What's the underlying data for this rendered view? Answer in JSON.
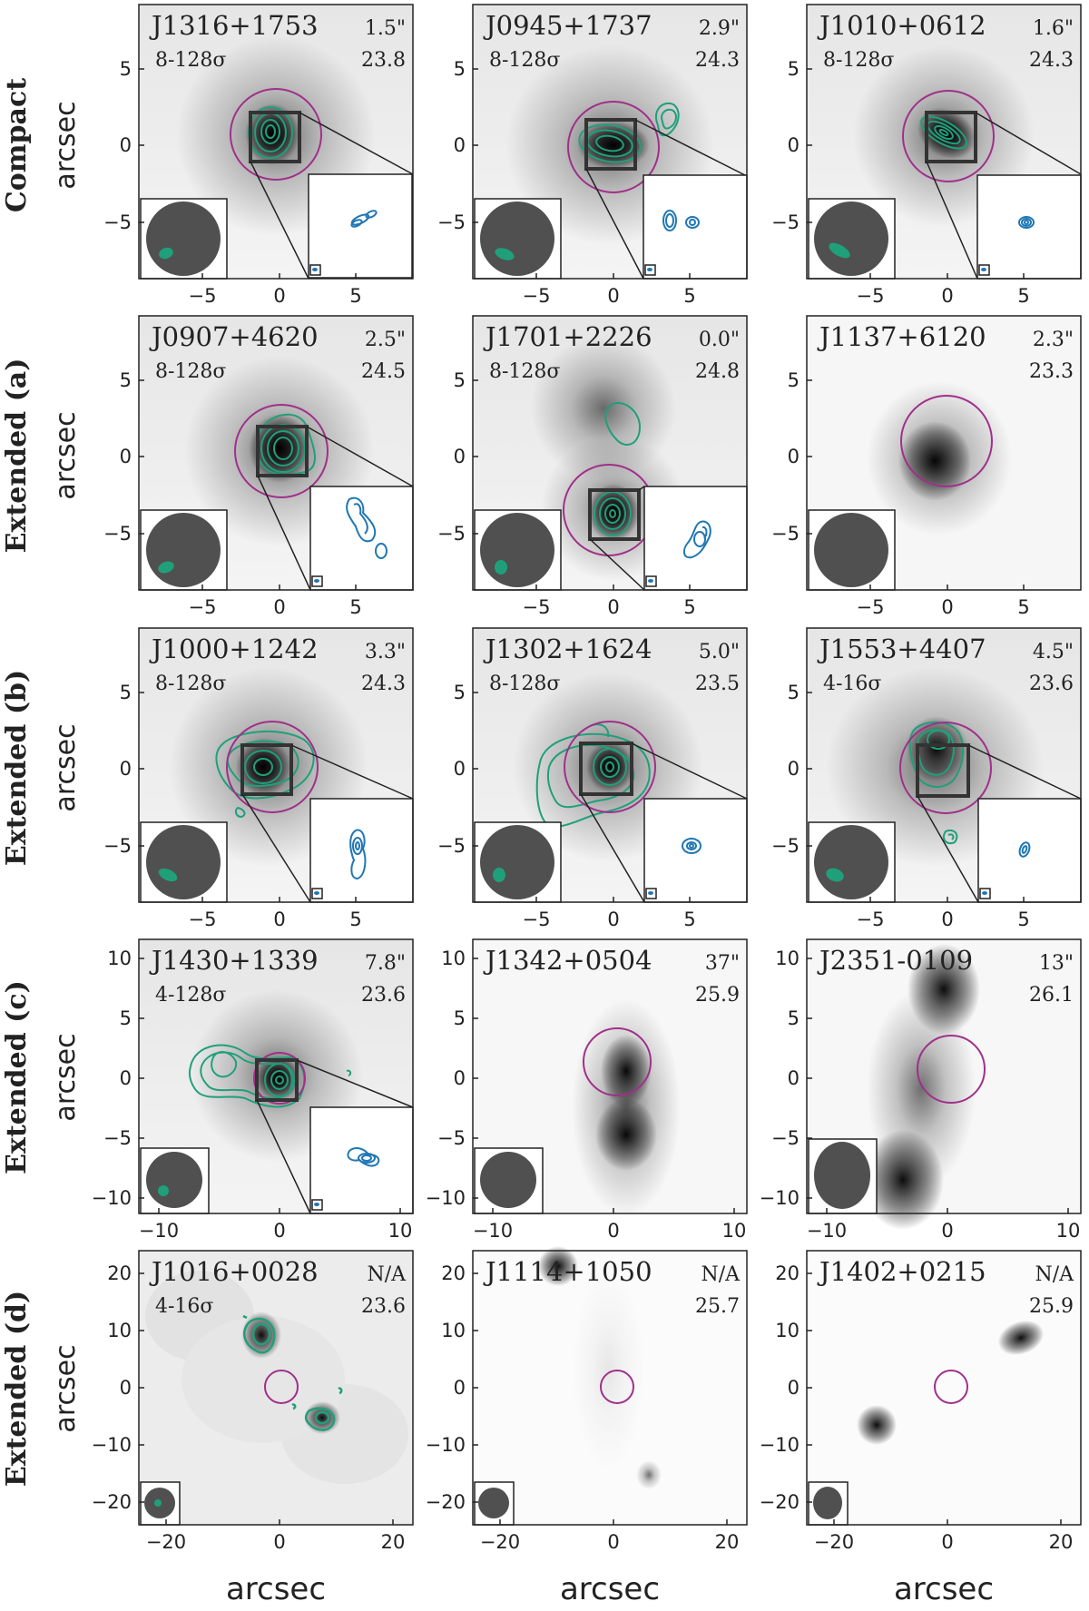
{
  "figure": {
    "x_axis_label": "arcsec",
    "rows": [
      {
        "category": "Compact",
        "y_axis_label": "arcsec",
        "x_ticks": [
          "−5",
          "0",
          "5"
        ],
        "y_ticks": [
          "5",
          "0",
          "−5"
        ],
        "panels": [
          {
            "name": "J1316+1753",
            "offset": "1.5\"",
            "contours": "8-128σ",
            "mag": "23.8"
          },
          {
            "name": "J0945+1737",
            "offset": "2.9\"",
            "contours": "8-128σ",
            "mag": "24.3"
          },
          {
            "name": "J1010+0612",
            "offset": "1.6\"",
            "contours": "8-128σ",
            "mag": "24.3"
          }
        ]
      },
      {
        "category": "Extended (a)",
        "y_axis_label": "arcsec",
        "x_ticks": [
          "−5",
          "0",
          "5"
        ],
        "y_ticks": [
          "5",
          "0",
          "−5"
        ],
        "panels": [
          {
            "name": "J0907+4620",
            "offset": "2.5\"",
            "contours": "8-128σ",
            "mag": "24.5"
          },
          {
            "name": "J1701+2226",
            "offset": "0.0\"",
            "contours": "8-128σ",
            "mag": "24.8"
          },
          {
            "name": "J1137+6120",
            "offset": "2.3\"",
            "contours": "",
            "mag": "23.3"
          }
        ]
      },
      {
        "category": "Extended (b)",
        "y_axis_label": "arcsec",
        "x_ticks": [
          "−5",
          "0",
          "5"
        ],
        "y_ticks": [
          "5",
          "0",
          "−5"
        ],
        "panels": [
          {
            "name": "J1000+1242",
            "offset": "3.3\"",
            "contours": "8-128σ",
            "mag": "24.3"
          },
          {
            "name": "J1302+1624",
            "offset": "5.0\"",
            "contours": "8-128σ",
            "mag": "23.5"
          },
          {
            "name": "J1553+4407",
            "offset": "4.5\"",
            "contours": "4-16σ",
            "mag": "23.6"
          }
        ]
      },
      {
        "category": "Extended (c)",
        "y_axis_label": "arcsec",
        "x_ticks": [
          "−10",
          "0",
          "10"
        ],
        "y_ticks": [
          "10",
          "5",
          "0",
          "−5",
          "−10"
        ],
        "panels": [
          {
            "name": "J1430+1339",
            "offset": "7.8\"",
            "contours": "4-128σ",
            "mag": "23.6"
          },
          {
            "name": "J1342+0504",
            "offset": "37\"",
            "contours": "",
            "mag": "25.9"
          },
          {
            "name": "J2351-0109",
            "offset": "13\"",
            "contours": "",
            "mag": "26.1"
          }
        ]
      },
      {
        "category": "Extended (d)",
        "y_axis_label": "arcsec",
        "x_ticks": [
          "−20",
          "0",
          "20"
        ],
        "y_ticks": [
          "20",
          "10",
          "0",
          "−10",
          "−20"
        ],
        "panels": [
          {
            "name": "J1016+0028",
            "offset": "N/A",
            "contours": "4-16σ",
            "mag": "23.6"
          },
          {
            "name": "J1114+1050",
            "offset": "N/A",
            "contours": "",
            "mag": "25.7"
          },
          {
            "name": "J1402+0215",
            "offset": "N/A",
            "contours": "",
            "mag": "25.9"
          }
        ]
      }
    ]
  },
  "colors": {
    "contour": "#1fa07a",
    "inset_contour": "#1f77b4",
    "circle": "#a0308a",
    "beam_disk": "#505050"
  }
}
